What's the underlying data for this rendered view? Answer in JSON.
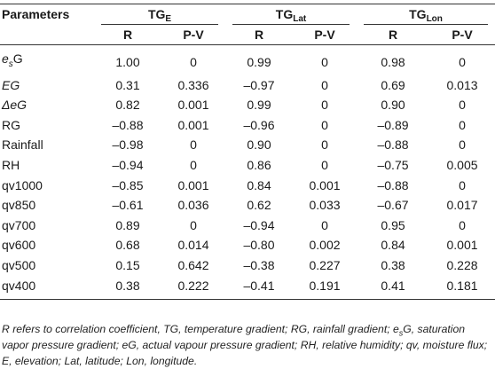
{
  "table": {
    "param_header": "Parameters",
    "groups": [
      {
        "prefix": "TG",
        "sub": "E"
      },
      {
        "prefix": "TG",
        "sub": "Lat"
      },
      {
        "prefix": "TG",
        "sub": "Lon"
      }
    ],
    "sub_headers": [
      "R",
      "P-V",
      "R",
      "P-V",
      "R",
      "P-V"
    ],
    "rows": [
      {
        "param": "e",
        "param_sub": "s",
        "param_suffix": "G",
        "vals": [
          "1.00",
          "0",
          "0.99",
          "0",
          "0.98",
          "0"
        ]
      },
      {
        "param": "EG",
        "vals": [
          "0.31",
          "0.336",
          "–0.97",
          "0",
          "0.69",
          "0.013"
        ]
      },
      {
        "param": "ΔeG",
        "vals": [
          "0.82",
          "0.001",
          "0.99",
          "0",
          "0.90",
          "0"
        ]
      },
      {
        "param": "RG",
        "vals": [
          "–0.88",
          "0.001",
          "–0.96",
          "0",
          "–0.89",
          "0"
        ]
      },
      {
        "param": "Rainfall",
        "vals": [
          "–0.98",
          "0",
          "0.90",
          "0",
          "–0.88",
          "0"
        ]
      },
      {
        "param": "RH",
        "vals": [
          "–0.94",
          "0",
          "0.86",
          "0",
          "–0.75",
          "0.005"
        ]
      },
      {
        "param": "qv1000",
        "vals": [
          "–0.85",
          "0.001",
          "0.84",
          "0.001",
          "–0.88",
          "0"
        ]
      },
      {
        "param": "qv850",
        "vals": [
          "–0.61",
          "0.036",
          "0.62",
          "0.033",
          "–0.67",
          "0.017"
        ]
      },
      {
        "param": "qv700",
        "vals": [
          "0.89",
          "0",
          "–0.94",
          "0",
          "0.95",
          "0"
        ]
      },
      {
        "param": "qv600",
        "vals": [
          "0.68",
          "0.014",
          "–0.80",
          "0.002",
          "0.84",
          "0.001"
        ]
      },
      {
        "param": "qv500",
        "vals": [
          "0.15",
          "0.642",
          "–0.38",
          "0.227",
          "0.38",
          "0.228"
        ]
      },
      {
        "param": "qv400",
        "vals": [
          "0.38",
          "0.222",
          "–0.41",
          "0.191",
          "0.41",
          "0.181"
        ]
      }
    ]
  },
  "footnote": {
    "part1": "R refers to correlation coefficient, TG, temperature gradient; RG, rainfall gradient; e",
    "sub": "s",
    "part2": "G, saturation vapor pressure gradient; eG, actual vapour pressure gradient; RH, relative humidity; qv, moisture flux; E, elevation; Lat, latitude; Lon, longitude."
  }
}
